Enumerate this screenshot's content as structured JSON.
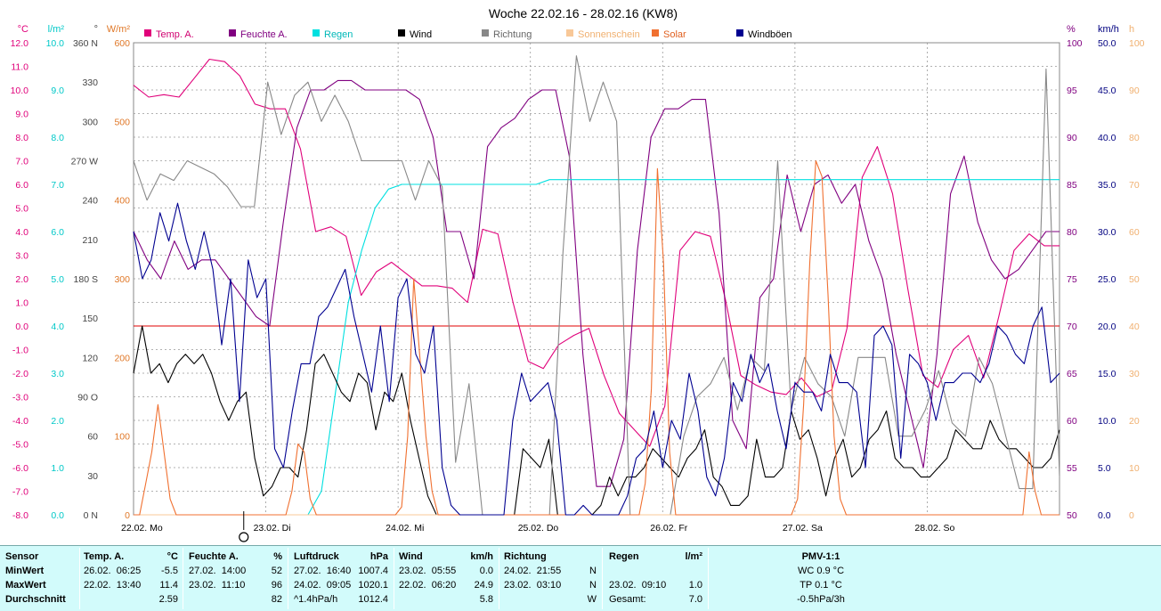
{
  "title": "Woche 22.02.16 - 28.02.16 (KW8)",
  "chart_data": {
    "type": "line",
    "title": "Woche 22.02.16 - 28.02.16 (KW8)",
    "x_labels": [
      "22.02. Mo",
      "23.02. Di",
      "24.02. Mi",
      "25.02. Do",
      "26.02. Fr",
      "27.02. Sa",
      "28.02. So"
    ],
    "marker_label": "O",
    "axes": {
      "temp": {
        "unit": "°C",
        "color": "#e0007a",
        "ticks": [
          "12.0",
          "11.0",
          "10.0",
          "9.0",
          "8.0",
          "7.0",
          "6.0",
          "5.0",
          "4.0",
          "3.0",
          "2.0",
          "1.0",
          "0.0",
          "-1.0",
          "-2.0",
          "-3.0",
          "-4.0",
          "-5.0",
          "-6.0",
          "-7.0",
          "-8.0"
        ],
        "range": [
          -8,
          12
        ]
      },
      "rain": {
        "unit": "l/m²",
        "color": "#00c8c8",
        "ticks": [
          "10.0",
          "9.0",
          "8.0",
          "7.0",
          "6.0",
          "5.0",
          "4.0",
          "3.0",
          "2.0",
          "1.0",
          "0.0"
        ],
        "range": [
          0,
          10
        ]
      },
      "direction": {
        "unit": "°",
        "color": "#444444",
        "ticks": [
          "360 N",
          "330",
          "300",
          "270 W",
          "240",
          "210",
          "180 S",
          "150",
          "120",
          "90 O",
          "60",
          "30",
          "0 N"
        ],
        "range": [
          0,
          360
        ]
      },
      "solar": {
        "unit": "W/m²",
        "color": "#e07828",
        "ticks": [
          "600",
          "500",
          "400",
          "300",
          "200",
          "100",
          "0"
        ],
        "range": [
          0,
          600
        ]
      },
      "humidity": {
        "unit": "%",
        "color": "#800080",
        "ticks": [
          "100",
          "95",
          "90",
          "85",
          "80",
          "75",
          "70",
          "65",
          "60",
          "55",
          "50"
        ],
        "range": [
          50,
          100
        ]
      },
      "wind": {
        "unit": "km/h",
        "color": "#000080",
        "ticks": [
          "50.0",
          "45.0",
          "40.0",
          "35.0",
          "30.0",
          "25.0",
          "20.0",
          "15.0",
          "10.0",
          "5.0",
          "0.0"
        ],
        "range": [
          0,
          50
        ]
      },
      "sunshine": {
        "unit": "h",
        "color": "#f0b070",
        "ticks": [
          "100",
          "90",
          "80",
          "70",
          "60",
          "50",
          "40",
          "30",
          "20",
          "10",
          "0"
        ],
        "range": [
          0,
          100
        ]
      }
    },
    "legend": [
      {
        "name": "Temp. A.",
        "color": "#e0007a"
      },
      {
        "name": "Feuchte A.",
        "color": "#800080"
      },
      {
        "name": "Regen",
        "color": "#00e0e0"
      },
      {
        "name": "Wind",
        "color": "#000000"
      },
      {
        "name": "Richtung",
        "color": "#888888"
      },
      {
        "name": "Sonnenschein",
        "color": "#f8c898"
      },
      {
        "name": "Solar",
        "color": "#f07030"
      },
      {
        "name": "Windböen",
        "color": "#000090"
      }
    ],
    "series": [
      {
        "name": "Temp. A.",
        "color": "#e0007a",
        "axis": "temp",
        "values": [
          10.2,
          9.7,
          9.8,
          9.7,
          10.5,
          11.3,
          11.2,
          10.6,
          9.4,
          9.2,
          9.2,
          7.5,
          4.0,
          4.2,
          3.8,
          1.3,
          2.3,
          2.7,
          2.2,
          1.7,
          1.7,
          1.6,
          1.0,
          4.1,
          3.9,
          1.0,
          -1.5,
          -1.8,
          -0.8,
          -0.4,
          -0.1,
          -2.1,
          -3.7,
          -4.4,
          -5.1,
          -3.4,
          3.2,
          4.0,
          3.8,
          1.1,
          -2.1,
          -2.5,
          -2.8,
          -2.9,
          -2.2,
          -3.0,
          -2.7,
          -0.1,
          6.3,
          7.6,
          5.6,
          1.6,
          -2.1,
          -2.6,
          -1.0,
          -0.4,
          -2.2,
          0.4,
          3.2,
          3.9,
          3.4,
          3.4
        ]
      },
      {
        "name": "Feuchte A.",
        "color": "#800080",
        "axis": "humidity",
        "values": [
          80,
          77,
          75,
          79,
          76,
          77,
          77,
          75,
          73,
          71,
          70,
          81,
          91,
          95,
          95,
          96,
          96,
          95,
          95,
          95,
          95,
          94,
          90,
          80,
          80,
          75,
          89,
          91,
          92,
          94,
          95,
          95,
          88,
          67,
          53,
          53,
          58,
          78,
          90,
          93,
          93,
          94,
          94,
          82,
          60,
          57,
          73,
          75,
          86,
          80,
          85,
          86,
          83,
          85,
          79,
          75,
          67,
          61,
          55,
          67,
          84,
          88,
          81,
          77,
          75,
          76,
          78,
          80,
          80
        ]
      },
      {
        "name": "Regen",
        "color": "#00e0e0",
        "axis": "rain",
        "values": [
          0,
          0,
          0,
          0,
          0,
          0,
          0,
          0,
          0,
          0,
          0,
          0,
          0,
          0,
          0.5,
          2.5,
          4.5,
          5.6,
          6.5,
          6.9,
          7.0,
          7.0,
          7.0,
          7.0,
          7.0,
          7.0,
          7.0,
          7.0,
          7.0,
          7.0,
          7.0,
          7.1,
          7.1,
          7.1,
          7.1,
          7.1,
          7.1,
          7.1,
          7.1,
          7.1,
          7.1,
          7.1,
          7.1,
          7.1,
          7.1,
          7.1,
          7.1,
          7.1,
          7.1,
          7.1,
          7.1,
          7.1,
          7.1,
          7.1,
          7.1,
          7.1,
          7.1,
          7.1,
          7.1,
          7.1,
          7.1,
          7.1,
          7.1,
          7.1,
          7.1,
          7.1,
          7.1,
          7.1,
          7.1,
          7.1
        ]
      },
      {
        "name": "Wind",
        "color": "#000000",
        "axis": "wind",
        "values": [
          15,
          20,
          15,
          16,
          14,
          16,
          17,
          16,
          17,
          15,
          12,
          10,
          12,
          13,
          6,
          2,
          3,
          5,
          5,
          4,
          9,
          16,
          17,
          15,
          13,
          12,
          15,
          14,
          9,
          13,
          12,
          15,
          10,
          6,
          2,
          0,
          0,
          0,
          0,
          0,
          0,
          0,
          0,
          0,
          0,
          7,
          6,
          5,
          8,
          0,
          0,
          0,
          0,
          0,
          1,
          4,
          2,
          4,
          4,
          5,
          7,
          6,
          5,
          4,
          6,
          7,
          9,
          4,
          3,
          1,
          1,
          2,
          8,
          4,
          4,
          5,
          11,
          8,
          9,
          6,
          2,
          6,
          8,
          4,
          5,
          8,
          9,
          11,
          6,
          5,
          5,
          4,
          4,
          5,
          6,
          9,
          8,
          7,
          7,
          10,
          8,
          7,
          7,
          6,
          5,
          5,
          6,
          9
        ]
      },
      {
        "name": "Richtung",
        "color": "#888888",
        "axis": "direction",
        "values": [
          270,
          240,
          260,
          255,
          270,
          265,
          260,
          250,
          235,
          235,
          330,
          290,
          320,
          330,
          300,
          320,
          300,
          270,
          270,
          270,
          270,
          240,
          270,
          250,
          40,
          100,
          0,
          0,
          0,
          0,
          0,
          0,
          200,
          350,
          300,
          330,
          300,
          0,
          0,
          0,
          0,
          60,
          90,
          100,
          120,
          80,
          120,
          110,
          270,
          80,
          120,
          100,
          90,
          60,
          120,
          120,
          120,
          60,
          60,
          80,
          110,
          70,
          60,
          120,
          100,
          60,
          20,
          20,
          340,
          30
        ]
      },
      {
        "name": "Sonnenschein",
        "color": "#f8c898",
        "axis": "sunshine",
        "values": [
          0,
          0,
          0,
          0,
          0,
          0,
          0,
          0,
          0,
          0,
          0,
          0,
          0,
          0,
          0,
          0,
          0,
          0,
          0,
          0,
          0,
          0,
          0,
          0,
          0,
          0,
          0,
          0,
          0,
          0,
          0,
          0,
          0,
          0,
          0,
          0,
          0,
          0,
          0,
          0,
          0,
          0,
          0,
          0,
          0,
          0,
          0,
          0,
          0,
          0,
          0,
          0,
          0,
          0,
          0,
          0,
          0,
          0,
          0,
          0,
          0,
          0,
          0,
          0,
          0,
          0,
          0,
          0,
          0,
          0
        ]
      },
      {
        "name": "Solar",
        "color": "#f07030",
        "axis": "solar",
        "values": [
          0,
          0,
          40,
          80,
          140,
          80,
          20,
          0,
          0,
          0,
          0,
          0,
          0,
          0,
          0,
          0,
          0,
          0,
          0,
          0,
          0,
          0,
          0,
          0,
          0,
          0,
          30,
          90,
          80,
          20,
          0,
          0,
          0,
          0,
          0,
          0,
          0,
          0,
          0,
          0,
          0,
          0,
          0,
          0,
          10,
          100,
          300,
          200,
          100,
          30,
          0,
          0,
          0,
          0,
          0,
          0,
          0,
          0,
          0,
          0,
          0,
          0,
          0,
          0,
          0,
          0,
          0,
          0,
          0,
          0,
          0,
          0,
          0,
          0,
          0,
          0,
          0,
          0,
          0,
          0,
          0,
          0,
          0,
          0,
          40,
          160,
          440,
          320,
          80,
          0,
          0,
          0,
          0,
          0,
          0,
          0,
          0,
          0,
          0,
          0,
          0,
          0,
          0,
          0,
          0,
          0,
          0,
          0,
          0,
          20,
          140,
          320,
          450,
          430,
          280,
          100,
          20,
          0,
          0,
          0,
          0,
          0,
          0,
          0,
          0,
          0,
          0,
          0,
          0,
          0,
          0,
          0,
          0,
          0,
          0,
          0,
          0,
          0,
          0,
          0,
          0,
          0,
          0,
          0,
          0,
          0,
          0,
          80,
          30,
          0,
          0,
          0,
          0
        ]
      },
      {
        "name": "Windböen",
        "color": "#000090",
        "axis": "wind",
        "values": [
          30,
          25,
          27,
          32,
          29,
          33,
          29,
          26,
          30,
          26,
          18,
          25,
          12,
          27,
          23,
          25,
          7,
          5,
          11,
          16,
          16,
          21,
          22,
          24,
          26,
          21,
          17,
          13,
          20,
          12,
          23,
          25,
          17,
          15,
          20,
          5,
          1,
          0,
          0,
          0,
          0,
          0,
          0,
          10,
          15,
          12,
          13,
          14,
          10,
          0,
          0,
          1,
          0,
          0,
          0,
          0,
          2,
          6,
          7,
          11,
          5,
          10,
          8,
          15,
          11,
          4,
          2,
          6,
          14,
          12,
          17,
          14,
          16,
          11,
          7,
          14,
          13,
          13,
          11,
          17,
          14,
          14,
          13,
          5,
          19,
          20,
          18,
          6,
          17,
          16,
          14,
          10,
          14,
          14,
          15,
          15,
          14,
          16,
          20,
          19,
          17,
          16,
          20,
          22,
          14,
          15
        ]
      }
    ]
  },
  "stats": {
    "sensor": {
      "header": "Sensor",
      "rows": [
        "MinWert",
        "MaxWert",
        "Durchschnitt"
      ]
    },
    "temp": {
      "header": "Temp. A.",
      "unit": "°C",
      "rows": [
        [
          "26.02.",
          "06:25",
          "-5.5"
        ],
        [
          "22.02.",
          "13:40",
          "11.4"
        ],
        [
          "",
          "",
          "2.59"
        ]
      ]
    },
    "feuchte": {
      "header": "Feuchte A.",
      "unit": "%",
      "rows": [
        [
          "27.02.",
          "14:00",
          "52"
        ],
        [
          "23.02.",
          "11:10",
          "96"
        ],
        [
          "",
          "",
          "82"
        ]
      ]
    },
    "luftdruck": {
      "header": "Luftdruck",
      "unit": "hPa",
      "rows": [
        [
          "27.02.",
          "16:40",
          "1007.4"
        ],
        [
          "24.02.",
          "09:05",
          "1020.1"
        ],
        [
          "^1.4hPa/h",
          "",
          "1012.4"
        ]
      ]
    },
    "wind": {
      "header": "Wind",
      "unit": "km/h",
      "rows": [
        [
          "23.02.",
          "05:55",
          "0.0"
        ],
        [
          "22.02.",
          "06:20",
          "24.9"
        ],
        [
          "",
          "",
          "5.8"
        ]
      ]
    },
    "richtung": {
      "header": "Richtung",
      "rows": [
        [
          "24.02.",
          "21:55",
          "N"
        ],
        [
          "23.02.",
          "03:10",
          "N"
        ],
        [
          "",
          "",
          "W"
        ]
      ]
    },
    "regen": {
      "header": "Regen",
      "unit": "l/m²",
      "rows": [
        [
          "",
          ""
        ],
        [
          "23.02.  09:10",
          "1.0"
        ],
        [
          "Gesamt:",
          "7.0"
        ]
      ]
    },
    "pmv": {
      "header": "PMV-1:1",
      "rows": [
        "WC 0.9 °C",
        "TP 0.1 °C",
        "-0.5hPa/3h"
      ]
    }
  }
}
